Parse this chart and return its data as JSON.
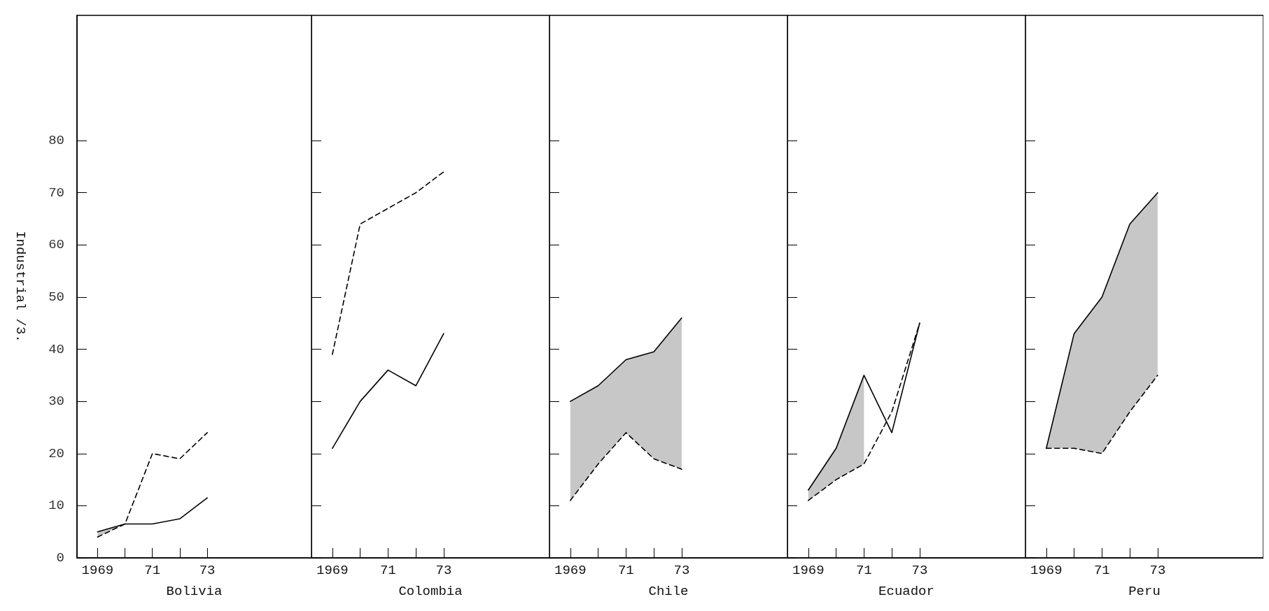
{
  "chart_data": [
    {
      "type": "line",
      "xlabel": "Bolivia",
      "ylabel": "Industrial /3.",
      "x": [
        1969,
        1970,
        1971,
        1972,
        1973
      ],
      "xlim": [
        1968.25,
        1976.8
      ],
      "xticks": [
        {
          "value": 1969,
          "label": "1969"
        },
        {
          "value": 1970,
          "label": null
        },
        {
          "value": 1971,
          "label": "71"
        },
        {
          "value": 1972,
          "label": null
        },
        {
          "value": 1973,
          "label": "73"
        }
      ],
      "ylim": [
        0,
        104
      ],
      "yticks": [
        0,
        10,
        20,
        30,
        40,
        50,
        60,
        70,
        80
      ],
      "series": [
        {
          "color": "#000000",
          "line_style": "solid",
          "values": [
            5,
            6.5,
            6.5,
            7.5,
            11.5
          ],
          "lower": [
            4,
            6.5,
            null,
            null,
            null
          ],
          "upper": [
            5,
            6.5,
            null,
            null,
            null
          ]
        },
        {
          "color": "#000000",
          "line_style": "dashed",
          "values": [
            4,
            6.5,
            20,
            19,
            24
          ]
        }
      ]
    },
    {
      "type": "line",
      "xlabel": "Colombia",
      "tick_labels": "x",
      "x": [
        1969,
        1970,
        1971,
        1972,
        1973
      ],
      "xlim": [
        1968.25,
        1976.8
      ],
      "xticks": [
        {
          "value": 1969,
          "label": "1969"
        },
        {
          "value": 1970,
          "label": null
        },
        {
          "value": 1971,
          "label": "71"
        },
        {
          "value": 1972,
          "label": null
        },
        {
          "value": 1973,
          "label": "73"
        }
      ],
      "ylim": [
        0,
        104
      ],
      "yticks": [
        0,
        10,
        20,
        30,
        40,
        50,
        60,
        70,
        80
      ],
      "series": [
        {
          "color": "#000000",
          "line_style": "solid",
          "values": [
            21,
            30,
            36,
            33,
            43
          ]
        },
        {
          "color": "#000000",
          "line_style": "dashed",
          "values": [
            39,
            64,
            67,
            70,
            74
          ]
        }
      ]
    },
    {
      "type": "line",
      "xlabel": "Chile",
      "tick_labels": "x",
      "x": [
        1969,
        1970,
        1971,
        1972,
        1973
      ],
      "xlim": [
        1968.25,
        1976.8
      ],
      "xticks": [
        {
          "value": 1969,
          "label": "1969"
        },
        {
          "value": 1970,
          "label": null
        },
        {
          "value": 1971,
          "label": "71"
        },
        {
          "value": 1972,
          "label": null
        },
        {
          "value": 1973,
          "label": "73"
        }
      ],
      "ylim": [
        0,
        104
      ],
      "yticks": [
        0,
        10,
        20,
        30,
        40,
        50,
        60,
        70,
        80
      ],
      "series": [
        {
          "color": "#000000",
          "line_style": "solid",
          "values": [
            30,
            33,
            38,
            39.5,
            46
          ],
          "lower": [
            11,
            18,
            24,
            19,
            17
          ],
          "upper": [
            30,
            33,
            38,
            39.5,
            46
          ]
        },
        {
          "color": "#000000",
          "line_style": "dashed",
          "values": [
            11,
            18,
            24,
            19,
            17
          ]
        }
      ]
    },
    {
      "type": "line",
      "xlabel": "Ecuador",
      "tick_labels": "x",
      "x": [
        1969,
        1970,
        1971,
        1972,
        1973
      ],
      "xlim": [
        1968.25,
        1976.8
      ],
      "xticks": [
        {
          "value": 1969,
          "label": "1969"
        },
        {
          "value": 1970,
          "label": null
        },
        {
          "value": 1971,
          "label": "71"
        },
        {
          "value": 1972,
          "label": null
        },
        {
          "value": 1973,
          "label": "73"
        }
      ],
      "ylim": [
        0,
        104
      ],
      "yticks": [
        0,
        10,
        20,
        30,
        40,
        50,
        60,
        70,
        80
      ],
      "series": [
        {
          "color": "#000000",
          "line_style": "solid",
          "values": [
            13,
            21,
            35,
            24,
            45
          ],
          "lower": [
            11,
            15,
            18,
            null,
            null
          ],
          "upper": [
            13,
            21,
            35,
            null,
            null
          ]
        },
        {
          "color": "#000000",
          "line_style": "dashed",
          "values": [
            11,
            15,
            18,
            28,
            45
          ]
        }
      ]
    },
    {
      "type": "line",
      "xlabel": "Peru",
      "tick_labels": "x",
      "x": [
        1969,
        1970,
        1971,
        1972,
        1973
      ],
      "xlim": [
        1968.25,
        1976.8
      ],
      "xticks": [
        {
          "value": 1969,
          "label": "1969"
        },
        {
          "value": 1970,
          "label": null
        },
        {
          "value": 1971,
          "label": "71"
        },
        {
          "value": 1972,
          "label": null
        },
        {
          "value": 1973,
          "label": "73"
        }
      ],
      "ylim": [
        0,
        104
      ],
      "yticks": [
        0,
        10,
        20,
        30,
        40,
        50,
        60,
        70,
        80
      ],
      "series": [
        {
          "color": "#000000",
          "line_style": "solid",
          "values": [
            21,
            43,
            50,
            64,
            70
          ],
          "lower": [
            21,
            21,
            20,
            28,
            35
          ],
          "upper": [
            21,
            43,
            50,
            64,
            70
          ]
        },
        {
          "color": "#000000",
          "line_style": "dashed",
          "values": [
            21,
            21,
            20,
            28,
            35
          ]
        }
      ]
    }
  ]
}
